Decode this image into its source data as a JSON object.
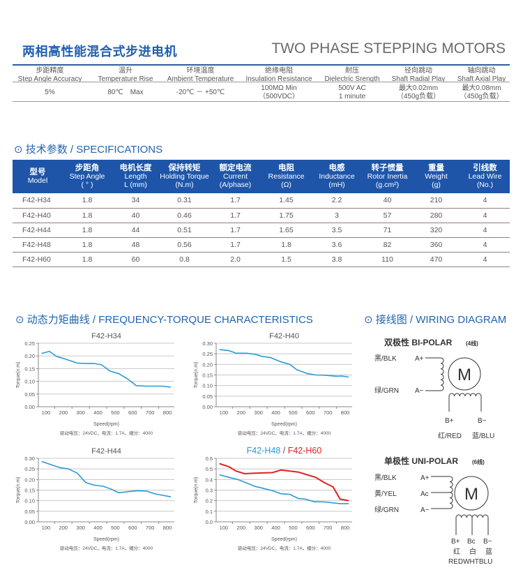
{
  "header": {
    "title_cn": "两相高性能混合式步进电机",
    "title_en": "TWO PHASE STEPPING MOTORS"
  },
  "general": {
    "columns": [
      {
        "cn": "步距精度",
        "en": "Step Angle Accuracy",
        "value": "5%",
        "value2": ""
      },
      {
        "cn": "温升",
        "en": "Temperature Rise",
        "value": "80℃　Max",
        "value2": ""
      },
      {
        "cn": "环境温度",
        "en": "Ambient Temperature",
        "value": "-20℃ － +50℃",
        "value2": ""
      },
      {
        "cn": "绝缘电阻",
        "en": "Insulation Resistance",
        "value": "100MΩ Min",
        "value2": "（500VDC）"
      },
      {
        "cn": "耐压",
        "en": "Dielectric Srength",
        "value": "500V AC",
        "value2": "1 minute"
      },
      {
        "cn": "径向跳动",
        "en": "Shaft Radial Play",
        "value": "最大0.02mm",
        "value2": "（450g负载）"
      },
      {
        "cn": "轴向跳动",
        "en": "Shaft Axial Play",
        "value": "最大0.08mm",
        "value2": "（450g负载）"
      }
    ]
  },
  "specs": {
    "heading": "⊙ 技术参数 / SPECIFICATIONS",
    "headers": [
      {
        "cn": "型号",
        "en": "Model",
        "unit": ""
      },
      {
        "cn": "步距角",
        "en": "Step Angle",
        "unit": "( ° )"
      },
      {
        "cn": "电机长度",
        "en": "Length",
        "unit": "L (mm)"
      },
      {
        "cn": "保持转矩",
        "en": "Holding Torque",
        "unit": "(N.m)"
      },
      {
        "cn": "额定电流",
        "en": "Current",
        "unit": "(A/phase)"
      },
      {
        "cn": "电阻",
        "en": "Resistance",
        "unit": "(Ω)"
      },
      {
        "cn": "电感",
        "en": "Inductance",
        "unit": "(mH)"
      },
      {
        "cn": "转子惯量",
        "en": "Rotor Inertia",
        "unit": "(g.cm²)"
      },
      {
        "cn": "重量",
        "en": "Weight",
        "unit": "(g)"
      },
      {
        "cn": "引线数",
        "en": "Lead Wire",
        "unit": "(No.)"
      }
    ],
    "rows": [
      [
        "F42-H34",
        "1.8",
        "34",
        "0.31",
        "1.7",
        "1.45",
        "2.2",
        "40",
        "210",
        "4"
      ],
      [
        "F42-H40",
        "1.8",
        "40",
        "0.46",
        "1.7",
        "1.75",
        "3",
        "57",
        "280",
        "4"
      ],
      [
        "F42-H44",
        "1.8",
        "44",
        "0.51",
        "1.7",
        "1.65",
        "3.5",
        "71",
        "320",
        "4"
      ],
      [
        "F42-H48",
        "1.8",
        "48",
        "0.56",
        "1.7",
        "1.8",
        "3.6",
        "82",
        "360",
        "4"
      ],
      [
        "F42-H60",
        "1.8",
        "60",
        "0.8",
        "2.0",
        "1.5",
        "3.8",
        "110",
        "470",
        "4"
      ]
    ]
  },
  "freq_heading": "⊙ 动态力矩曲线 / FREQUENCY-TORQUE CHARACTERISTICS",
  "wiring": {
    "heading": "⊙ 接线图 / WIRING DIAGRAM",
    "bipolar": {
      "title": "双极性 BI-POLAR",
      "note": "(4线)",
      "motor": "M",
      "blk": "黑/BLK",
      "grn": "绿/GRN",
      "a_plus": "A+",
      "a_minus": "A−",
      "b_plus": "B+",
      "b_minus": "B−",
      "red": "红/RED",
      "blu": "蓝/BLU"
    },
    "unipolar": {
      "title": "单极性 UNI-POLAR",
      "note": "(6线)",
      "motor": "M",
      "blk": "黑/BLK",
      "yel": "黄/YEL",
      "grn": "绿/GRN",
      "a_plus": "A+",
      "a_c": "Ac",
      "a_minus": "A−",
      "b_plus": "B+",
      "b_c": "Bc",
      "b_minus": "B−",
      "red_cn": "红",
      "wht_cn": "白",
      "blu_cn": "蓝",
      "colors_en": "REDWHTBLU"
    }
  },
  "chart_data": [
    {
      "type": "line",
      "title": "F42-H34",
      "xlabel": "Speed(rpm)",
      "ylabel": "Torque(n.m)",
      "note": "驱动电压：24VDC，电流：1.7A，细分：4000",
      "xlim": [
        56,
        840
      ],
      "ylim": [
        0,
        0.25
      ],
      "xticks": [
        100,
        200,
        300,
        400,
        500,
        600,
        700,
        800
      ],
      "yticks": [
        "0.00",
        "0.05",
        "0.10",
        "0.15",
        "0.20",
        "0.25"
      ],
      "grid": true,
      "series": [
        {
          "name": "F42-H34",
          "color": "#2a9ad6",
          "x": [
            75,
            120,
            160,
            200,
            280,
            330,
            380,
            420,
            470,
            520,
            570,
            620,
            680,
            770,
            820
          ],
          "y": [
            0.21,
            0.218,
            0.198,
            0.19,
            0.172,
            0.17,
            0.17,
            0.165,
            0.14,
            0.13,
            0.11,
            0.083,
            0.081,
            0.081,
            0.077
          ]
        }
      ]
    },
    {
      "type": "line",
      "title": "F42-H40",
      "xlabel": "Speed(rpm)",
      "ylabel": "Torque(n.m)",
      "note": "驱动电压：24VDC，电流：1.7A，细分：4000",
      "xlim": [
        56,
        840
      ],
      "ylim": [
        0,
        0.3
      ],
      "xticks": [
        100,
        200,
        300,
        400,
        500,
        600,
        700,
        800
      ],
      "yticks": [
        "0.00",
        "0.05",
        "0.10",
        "0.15",
        "0.20",
        "0.25",
        "0.30"
      ],
      "grid": true,
      "series": [
        {
          "name": "F42-H40",
          "color": "#2a9ad6",
          "x": [
            75,
            130,
            170,
            230,
            280,
            320,
            370,
            430,
            480,
            520,
            580,
            630,
            680,
            750,
            780,
            820
          ],
          "y": [
            0.27,
            0.265,
            0.253,
            0.253,
            0.248,
            0.238,
            0.232,
            0.212,
            0.2,
            0.175,
            0.157,
            0.15,
            0.149,
            0.144,
            0.145,
            0.14
          ]
        }
      ]
    },
    {
      "type": "line",
      "title": "F42-H44",
      "xlabel": "Speed(rpm)",
      "ylabel": "Torque(n.m)",
      "note": "驱动电压：24VDC，电流：1.7A，细分：4000",
      "xlim": [
        56,
        840
      ],
      "ylim": [
        0,
        0.3
      ],
      "xticks": [
        100,
        200,
        300,
        400,
        500,
        600,
        700,
        800
      ],
      "yticks": [
        "0.00",
        "0.05",
        "0.10",
        "0.15",
        "0.20",
        "0.25",
        "0.30"
      ],
      "grid": true,
      "series": [
        {
          "name": "F42-H44",
          "color": "#2a9ad6",
          "x": [
            75,
            130,
            180,
            230,
            280,
            330,
            380,
            430,
            480,
            520,
            580,
            630,
            680,
            730,
            820
          ],
          "y": [
            0.285,
            0.27,
            0.256,
            0.25,
            0.23,
            0.185,
            0.173,
            0.168,
            0.153,
            0.137,
            0.143,
            0.147,
            0.145,
            0.132,
            0.118
          ]
        }
      ]
    },
    {
      "type": "line",
      "title": "F42-H48 / F42-H60",
      "xlabel": "Speed(rpm)",
      "ylabel": "Torque(n.m)",
      "note": "驱动电压：24VDC，电流：1.7A，细分：4000",
      "xlim": [
        56,
        840
      ],
      "ylim": [
        0,
        0.6
      ],
      "xticks": [
        100,
        200,
        300,
        400,
        500,
        600,
        700,
        800
      ],
      "yticks": [
        "0.0",
        "0.1",
        "0.2",
        "0.3",
        "0.4",
        "0.5",
        "0.6"
      ],
      "grid": true,
      "series": [
        {
          "name": "F42-H48",
          "color": "#2a9ad6",
          "x": [
            75,
            130,
            180,
            220,
            280,
            330,
            380,
            430,
            480,
            530,
            570,
            620,
            680,
            770,
            820
          ],
          "y": [
            0.445,
            0.42,
            0.4,
            0.375,
            0.335,
            0.315,
            0.295,
            0.265,
            0.26,
            0.22,
            0.215,
            0.19,
            0.188,
            0.172,
            0.172
          ]
        },
        {
          "name": "F42-H60",
          "color": "#e02020",
          "x": [
            75,
            130,
            170,
            220,
            280,
            380,
            430,
            480,
            530,
            580,
            630,
            680,
            730,
            770,
            820
          ],
          "y": [
            0.55,
            0.52,
            0.48,
            0.455,
            0.46,
            0.465,
            0.49,
            0.48,
            0.47,
            0.445,
            0.42,
            0.37,
            0.33,
            0.215,
            0.2
          ]
        }
      ]
    }
  ]
}
